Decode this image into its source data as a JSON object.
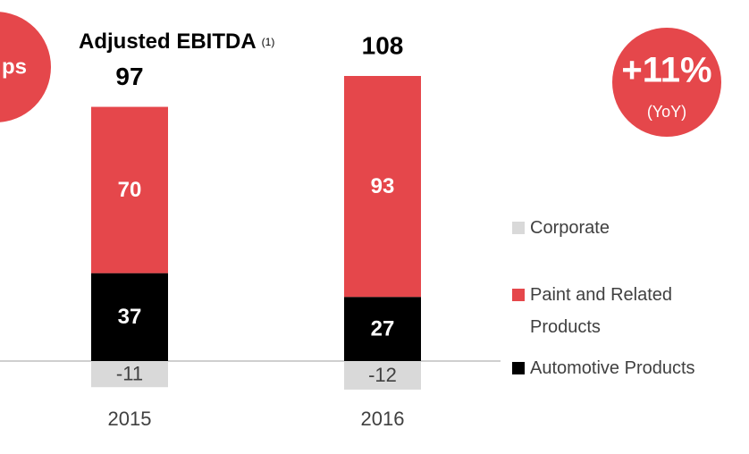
{
  "chart_data": {
    "type": "stacked_bar",
    "title": "Adjusted EBITDA",
    "title_note": "(1)",
    "categories": [
      "2015",
      "2016"
    ],
    "series": [
      {
        "name": "Corporate",
        "color": "#d9d9d9",
        "values": [
          -11,
          -12
        ]
      },
      {
        "name": "Paint and Related Products",
        "color": "#e5474b",
        "values": [
          70,
          93
        ]
      },
      {
        "name": "Automotive Products",
        "color": "#000000",
        "values": [
          37,
          27
        ]
      }
    ],
    "totals": [
      97,
      108
    ],
    "annotations": {
      "left_badge": "ps",
      "growth": "+11%",
      "growth_note": "(YoY)"
    }
  }
}
